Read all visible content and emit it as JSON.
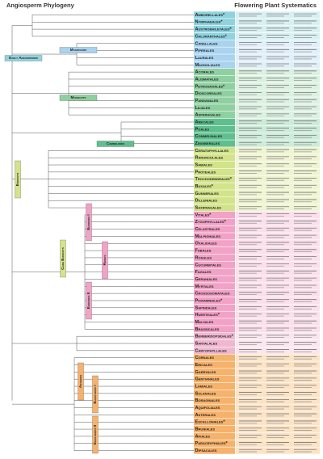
{
  "header": {
    "left_title": "Angiosperm Phylogeny",
    "right_title": "Flowering Plant Systematics"
  },
  "clades": [
    "Early Angiosperms",
    "Magnoliids",
    "Monocots",
    "Commelinids",
    "Eudicots",
    "Core Eudicots",
    "Rosids",
    "Eurosids I",
    "Eurosids II",
    "Asterids",
    "Euasterids I",
    "Euasterids II"
  ],
  "orders": [
    "Amborellales*",
    "Nymphaeales*",
    "Austrobaileyales*",
    "Chloranthales*",
    "Canellales",
    "Piperales",
    "Laurales",
    "Magnoliales",
    "Acorales",
    "Alismatales",
    "Petrosaviales*",
    "Dioscoreales",
    "Pandanales",
    "Liliales",
    "Asparagales",
    "Arecales",
    "Poales",
    "Commelinales",
    "Zingiberales",
    "Ceratophyllales",
    "Ranunculales",
    "Sabiales",
    "Proteales",
    "Trochodendrales*",
    "Buxales*",
    "Gunnerales",
    "Dilleniales",
    "Saxifragales",
    "Vitales*",
    "Zygophyllales*",
    "Celastrales",
    "Malpighiales",
    "Oxalidales",
    "Fabales",
    "Rosales",
    "Cucurbitales",
    "Fagales",
    "Geraniales",
    "Myrtales",
    "Crossosomatales",
    "Picramniales*",
    "Sapindales",
    "Huerteales*",
    "Malvales",
    "Brassicales",
    "Berberidopsidales*",
    "Santalales",
    "Caryophyllales",
    "Cornales",
    "Ericales",
    "Garryales",
    "Gentianales",
    "Lamiales",
    "Solanales",
    "Boraginales",
    "Aquifoliales",
    "Asterales",
    "Escalloniales*",
    "Bruniales",
    "Apiales",
    "Paracryphiales*",
    "Dipsacales"
  ]
}
